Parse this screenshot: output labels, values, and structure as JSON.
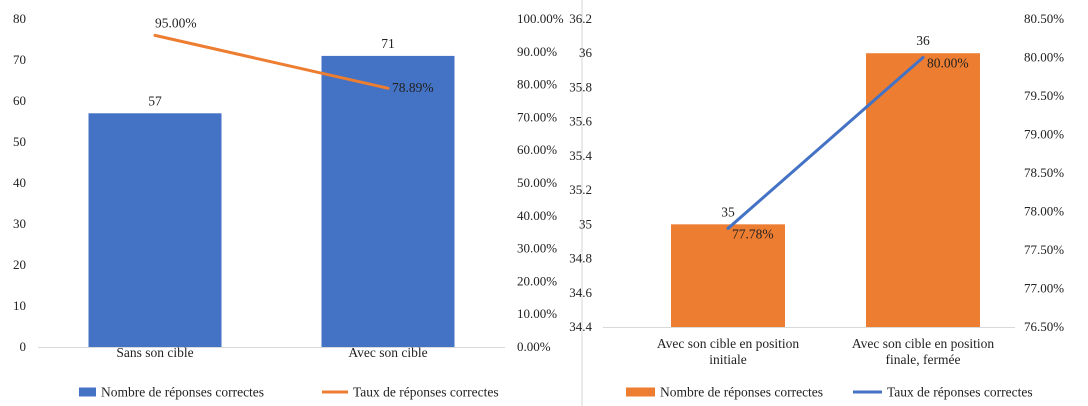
{
  "chart_data": [
    {
      "type": "bar+line",
      "categories": [
        "Sans son cible",
        "Avec son cible"
      ],
      "series": [
        {
          "name": "Nombre de réponses correctes",
          "type": "bar",
          "axis": "left",
          "values": [
            57,
            71
          ],
          "labels": [
            "57",
            "71"
          ],
          "color": "#4472C4"
        },
        {
          "name": "Taux de réponses correctes",
          "type": "line",
          "axis": "right",
          "values": [
            0.95,
            0.7889
          ],
          "labels": [
            "95.00%",
            "78.89%"
          ],
          "color": "#ED7D31"
        }
      ],
      "ylim": [
        0,
        80
      ],
      "yticks": [
        "0",
        "10",
        "20",
        "30",
        "40",
        "50",
        "60",
        "70",
        "80"
      ],
      "y2lim": [
        0,
        1
      ],
      "y2ticks": [
        "0.00%",
        "10.00%",
        "20.00%",
        "30.00%",
        "40.00%",
        "50.00%",
        "60.00%",
        "70.00%",
        "80.00%",
        "90.00%",
        "100.00%"
      ],
      "legend_position": "bottom",
      "grid": false
    },
    {
      "type": "bar+line",
      "categories": [
        "Avec son cible en position\ninitiale",
        "Avec son cible en position\nfinale, fermée"
      ],
      "series": [
        {
          "name": "Nombre de réponses correctes",
          "type": "bar",
          "axis": "left",
          "values": [
            35,
            36
          ],
          "labels": [
            "35",
            "36"
          ],
          "color": "#ED7D31"
        },
        {
          "name": "Taux de réponses correctes",
          "type": "line",
          "axis": "right",
          "values": [
            0.7778,
            0.8
          ],
          "labels": [
            "77.78%",
            "80.00%"
          ],
          "color": "#4472C4"
        }
      ],
      "ylim": [
        34.4,
        36.2
      ],
      "yticks": [
        "34.4",
        "34.6",
        "34.8",
        "35",
        "35.2",
        "35.4",
        "35.6",
        "35.8",
        "36",
        "36.2"
      ],
      "y2lim": [
        0.765,
        0.805
      ],
      "y2ticks": [
        "76.50%",
        "77.00%",
        "77.50%",
        "78.00%",
        "78.50%",
        "79.00%",
        "79.50%",
        "80.00%",
        "80.50%"
      ],
      "legend_position": "bottom",
      "grid": false
    }
  ]
}
